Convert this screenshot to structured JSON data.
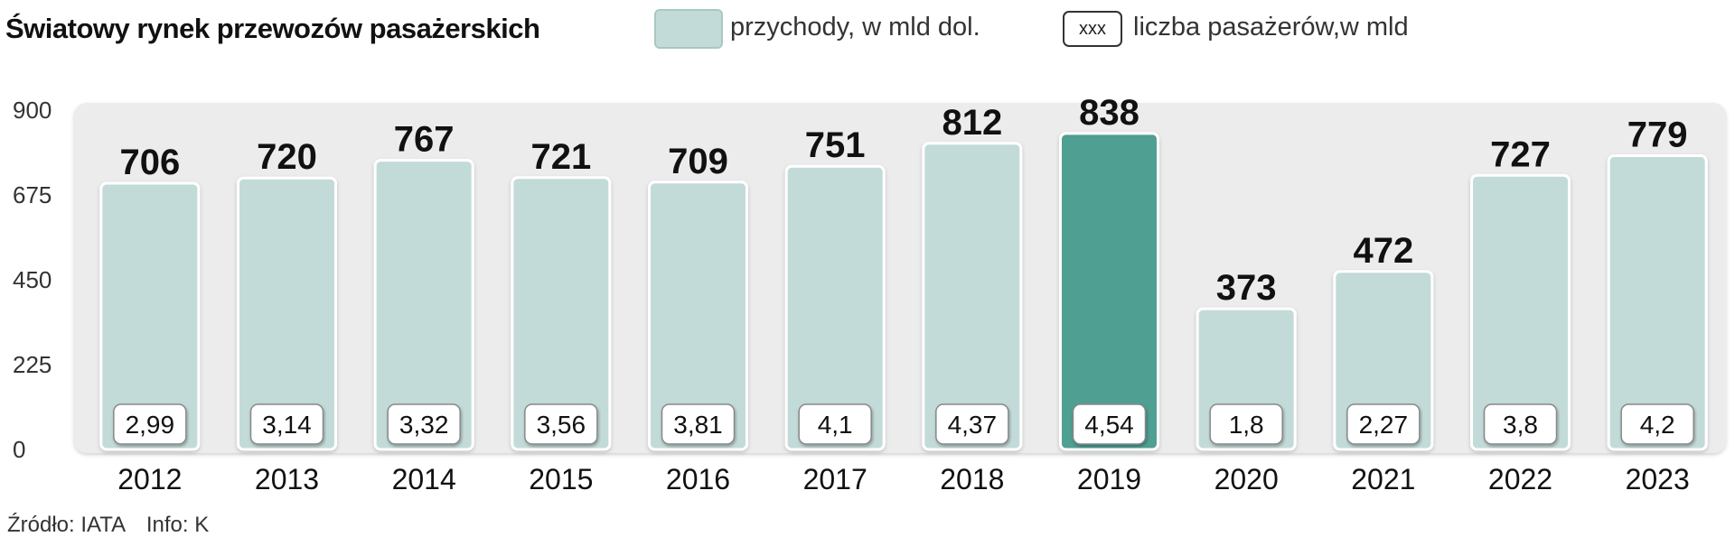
{
  "header": {
    "title": "Światowy rynek przewozów pasażerskich",
    "legend_revenue": "przychody, w mld dol.",
    "legend_box_sample": "xxx",
    "legend_passengers": "liczba pasażerów,w mld"
  },
  "source": {
    "source_text": "Źródło: IATA",
    "info_text": "Info: K"
  },
  "colors": {
    "bar": "#c3dbd8",
    "bar_border": "#ffffff",
    "highlight_bar": "#4f9f92",
    "panel": "#ececec"
  },
  "chart_data": {
    "type": "bar",
    "categories": [
      "2012",
      "2013",
      "2014",
      "2015",
      "2016",
      "2017",
      "2018",
      "2019",
      "2020",
      "2021",
      "2022",
      "2023"
    ],
    "series": [
      {
        "name": "przychody, w mld dol.",
        "values": [
          706,
          720,
          767,
          721,
          709,
          751,
          812,
          838,
          373,
          472,
          727,
          779
        ]
      },
      {
        "name": "liczba pasażerów,w mld",
        "values": [
          "2,99",
          "3,14",
          "3,32",
          "3,56",
          "3,81",
          "4,1",
          "4,37",
          "4,54",
          "1,8",
          "2,27",
          "3,8",
          "4,2"
        ]
      }
    ],
    "highlight": "2019",
    "yticks": [
      "0",
      "225",
      "450",
      "675",
      "900"
    ],
    "ylim": [
      0,
      900
    ],
    "grid": false,
    "legend": "top"
  }
}
